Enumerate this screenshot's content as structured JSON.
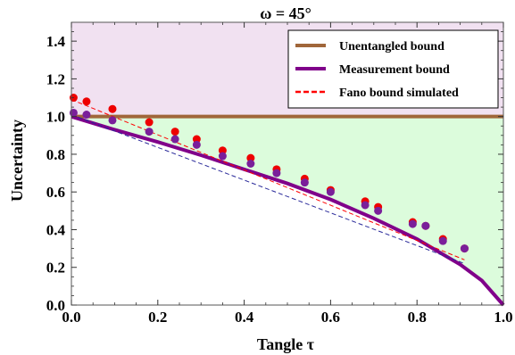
{
  "chart_data": {
    "type": "scatter",
    "title": "ω = 45°",
    "xlabel": "Tangle τ",
    "ylabel": "Uncertainty",
    "xlim": [
      0.0,
      1.0
    ],
    "ylim": [
      0.0,
      1.5
    ],
    "xticks": [
      "0.0",
      "0.2",
      "0.4",
      "0.6",
      "0.8",
      "1.0"
    ],
    "yticks": [
      "0.0",
      "0.2",
      "0.4",
      "0.6",
      "0.8",
      "1.0",
      "1.2",
      "1.4"
    ],
    "regions": [
      {
        "fill": "#f1e1f1",
        "description": "above unentangled bound (y > 1)"
      },
      {
        "fill": "#dcfcdc",
        "description": "between measurement bound and unentangled bound"
      }
    ],
    "series": [
      {
        "name": "Unentangled bound",
        "kind": "line",
        "color": "#a0663a",
        "x": [
          0.0,
          1.0
        ],
        "values": [
          1.0,
          1.0
        ]
      },
      {
        "name": "Measurement bound",
        "kind": "line",
        "color": "#80008a",
        "x": [
          0.0,
          0.1,
          0.2,
          0.3,
          0.4,
          0.5,
          0.6,
          0.7,
          0.8,
          0.9,
          0.95,
          1.0
        ],
        "values": [
          1.0,
          0.93,
          0.865,
          0.795,
          0.72,
          0.645,
          0.56,
          0.46,
          0.35,
          0.215,
          0.13,
          0.0
        ]
      },
      {
        "name": "Fano bound simulated",
        "kind": "dashed-line",
        "color": "#ff0000",
        "x": [
          0.0,
          0.91
        ],
        "values": [
          1.09,
          0.24
        ]
      },
      {
        "kind": "dashed-line",
        "color": "#2a2a9a",
        "x": [
          0.0,
          0.91
        ],
        "values": [
          1.01,
          0.22
        ]
      },
      {
        "kind": "points",
        "color": "#ee0000",
        "x": [
          0.005,
          0.035,
          0.095,
          0.18,
          0.24,
          0.29,
          0.35,
          0.415,
          0.475,
          0.54,
          0.6,
          0.68,
          0.71,
          0.79,
          0.82,
          0.86,
          0.91
        ],
        "values": [
          1.1,
          1.08,
          1.04,
          0.97,
          0.92,
          0.88,
          0.82,
          0.78,
          0.72,
          0.67,
          0.61,
          0.55,
          0.52,
          0.44,
          0.42,
          0.35,
          0.3
        ]
      },
      {
        "kind": "points",
        "color": "#7a1f9a",
        "x": [
          0.005,
          0.035,
          0.095,
          0.18,
          0.24,
          0.29,
          0.35,
          0.415,
          0.475,
          0.54,
          0.6,
          0.68,
          0.71,
          0.79,
          0.82,
          0.86,
          0.91
        ],
        "values": [
          1.02,
          1.01,
          0.98,
          0.92,
          0.88,
          0.85,
          0.79,
          0.75,
          0.7,
          0.65,
          0.6,
          0.53,
          0.5,
          0.43,
          0.42,
          0.34,
          0.3
        ]
      }
    ],
    "legend": {
      "placement": "top-right",
      "entries": [
        {
          "label": "Unentangled bound",
          "color": "#a0663a",
          "style": "solid"
        },
        {
          "label": "Measurement bound",
          "color": "#80008a",
          "style": "solid"
        },
        {
          "label": "Fano bound simulated",
          "color": "#ff0000",
          "style": "dashed"
        }
      ]
    }
  }
}
